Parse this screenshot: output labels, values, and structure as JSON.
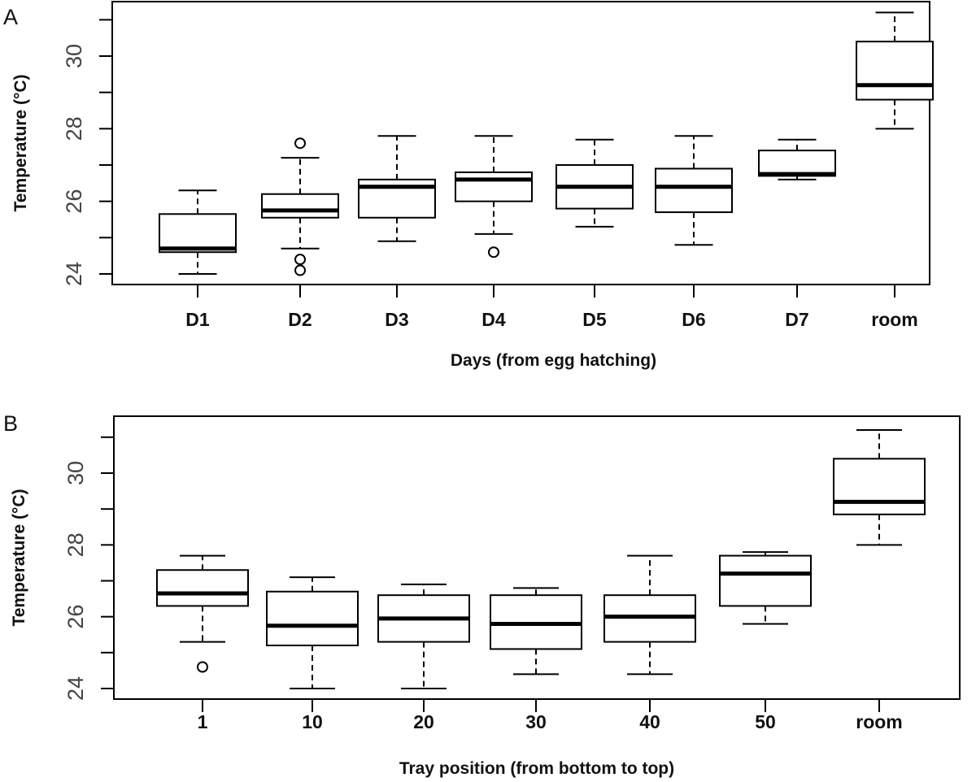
{
  "chart_data": [
    {
      "type": "box",
      "panel_label": "A",
      "title": "",
      "ylabel": "Temperature (°C)",
      "xlabel": "Days (from egg hatching)",
      "ylim": [
        23.7,
        31.5
      ],
      "yticks": [
        24,
        26,
        28,
        30
      ],
      "categories": [
        "D1",
        "D2",
        "D3",
        "D4",
        "D5",
        "D6",
        "D7",
        "room"
      ],
      "boxes": [
        {
          "min": 24.0,
          "q1": 24.6,
          "median": 24.7,
          "q3": 25.65,
          "max": 26.3,
          "outliers": []
        },
        {
          "min": 24.7,
          "q1": 25.55,
          "median": 25.75,
          "q3": 26.2,
          "max": 27.2,
          "outliers": [
            27.6,
            24.4,
            24.1
          ]
        },
        {
          "min": 24.9,
          "q1": 25.55,
          "median": 26.4,
          "q3": 26.6,
          "max": 27.8,
          "outliers": []
        },
        {
          "min": 25.1,
          "q1": 26.0,
          "median": 26.6,
          "q3": 26.8,
          "max": 27.8,
          "outliers": [
            24.6
          ]
        },
        {
          "min": 25.3,
          "q1": 25.8,
          "median": 26.4,
          "q3": 27.0,
          "max": 27.7,
          "outliers": []
        },
        {
          "min": 24.8,
          "q1": 25.7,
          "median": 26.4,
          "q3": 26.9,
          "max": 27.8,
          "outliers": []
        },
        {
          "min": 26.6,
          "q1": 26.7,
          "median": 26.75,
          "q3": 27.4,
          "max": 27.7,
          "outliers": []
        },
        {
          "min": 28.0,
          "q1": 28.8,
          "median": 29.2,
          "q3": 30.4,
          "max": 31.2,
          "outliers": []
        }
      ]
    },
    {
      "type": "box",
      "panel_label": "B",
      "title": "",
      "ylabel": "Temperature (°C)",
      "xlabel": "Tray position (from bottom to top)",
      "ylim": [
        23.7,
        31.5
      ],
      "yticks": [
        24,
        26,
        28,
        30
      ],
      "categories": [
        "1",
        "10",
        "20",
        "30",
        "40",
        "50",
        "room"
      ],
      "boxes": [
        {
          "min": 25.3,
          "q1": 26.3,
          "median": 26.65,
          "q3": 27.3,
          "max": 27.7,
          "outliers": [
            24.6
          ]
        },
        {
          "min": 24.0,
          "q1": 25.2,
          "median": 25.75,
          "q3": 26.7,
          "max": 27.1,
          "outliers": []
        },
        {
          "min": 24.0,
          "q1": 25.3,
          "median": 25.95,
          "q3": 26.6,
          "max": 26.9,
          "outliers": []
        },
        {
          "min": 24.4,
          "q1": 25.1,
          "median": 25.8,
          "q3": 26.6,
          "max": 26.8,
          "outliers": []
        },
        {
          "min": 24.4,
          "q1": 25.3,
          "median": 26.0,
          "q3": 26.6,
          "max": 27.7,
          "outliers": []
        },
        {
          "min": 25.8,
          "q1": 26.3,
          "median": 27.2,
          "q3": 27.7,
          "max": 27.8,
          "outliers": []
        },
        {
          "min": 28.0,
          "q1": 28.85,
          "median": 29.2,
          "q3": 30.4,
          "max": 31.2,
          "outliers": []
        }
      ]
    }
  ]
}
